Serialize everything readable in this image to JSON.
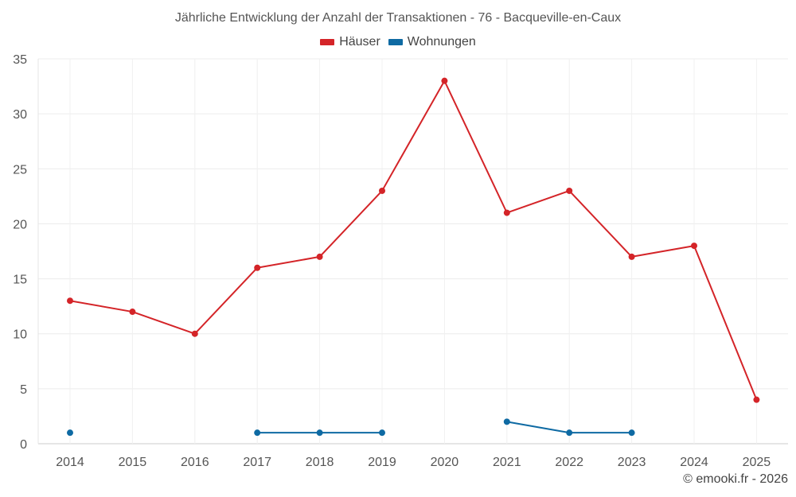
{
  "chart_data": {
    "type": "line",
    "title": "Jährliche Entwicklung der Anzahl der Transaktionen - 76 - Bacqueville-en-Caux",
    "categories": [
      "2014",
      "2015",
      "2016",
      "2017",
      "2018",
      "2019",
      "2020",
      "2021",
      "2022",
      "2023",
      "2024",
      "2025"
    ],
    "yticks": [
      0,
      5,
      10,
      15,
      20,
      25,
      30,
      35
    ],
    "ylim": [
      0,
      35
    ],
    "grid": true,
    "legend_position": "top-center",
    "series": [
      {
        "name": "Häuser",
        "color": "#d42428",
        "values": [
          13,
          12,
          10,
          16,
          17,
          23,
          33,
          21,
          23,
          17,
          18,
          4
        ]
      },
      {
        "name": "Wohnungen",
        "color": "#0e6aa3",
        "values": [
          1,
          null,
          null,
          1,
          1,
          1,
          null,
          2,
          1,
          1,
          null,
          null
        ]
      }
    ]
  },
  "credit": "© emooki.fr - 2026"
}
